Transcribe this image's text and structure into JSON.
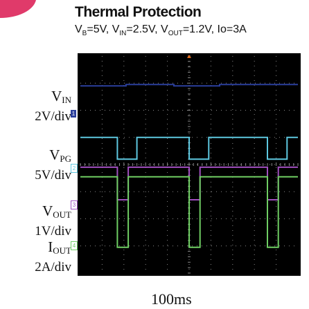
{
  "colors": {
    "vin": "#2b3f9c",
    "vpg": "#5ec8e0",
    "vout": "#a14fc0",
    "iout": "#6fce63",
    "screen_bg": "#000000",
    "grid": "#8a8a8a",
    "corner": "#e03a6a"
  },
  "title": "Thermal Protection",
  "conditions": {
    "vb_label": "V",
    "vb_sub": "B",
    "vb_value": "=5V, ",
    "vin_label": "V",
    "vin_sub": "IN",
    "vin_value": "=2.5V, ",
    "vout_label": "V",
    "vout_sub": "OUT",
    "vout_value": "=1.2V,  Io=3A"
  },
  "channels": [
    {
      "symbol": "V",
      "sub": "IN",
      "scale": "2V/div",
      "marker": "1"
    },
    {
      "symbol": "V",
      "sub": "PG",
      "scale": "5V/div",
      "marker": "2"
    },
    {
      "symbol": "V",
      "sub": "OUT",
      "scale": "1V/div",
      "marker": "3"
    },
    {
      "symbol": "I",
      "sub": "OUT",
      "scale": "2A/div",
      "marker": "4"
    }
  ],
  "timebase": "100ms",
  "chart_data": {
    "type": "line",
    "title": "Thermal Protection",
    "xlabel": "100ms",
    "x_divisions": 10,
    "y_divisions": 8,
    "xlim": [
      0,
      10
    ],
    "ylim": [
      0,
      8
    ],
    "grid": true,
    "series": [
      {
        "name": "VIN",
        "color_key": "vin",
        "x": [
          0,
          2.1,
          2.1,
          4.3,
          4.3,
          6.4,
          6.4,
          10
        ],
        "y": [
          6.9,
          6.9,
          6.95,
          6.95,
          6.9,
          6.9,
          6.95,
          6.95
        ]
      },
      {
        "name": "VPG",
        "color_key": "vpg",
        "x": [
          0,
          1.7,
          1.7,
          2.6,
          2.6,
          5.0,
          5.0,
          5.9,
          5.9,
          8.6,
          8.6,
          9.5,
          9.5,
          10
        ],
        "y": [
          5.0,
          5.0,
          4.2,
          4.2,
          5.0,
          5.0,
          4.2,
          4.2,
          5.0,
          5.0,
          4.2,
          4.2,
          5.0,
          5.0
        ]
      },
      {
        "name": "VOUT",
        "color_key": "vout",
        "x": [
          0,
          1.7,
          1.7,
          2.2,
          2.2,
          5.0,
          5.0,
          5.5,
          5.5,
          8.6,
          8.6,
          9.1,
          9.1,
          10
        ],
        "y": [
          3.9,
          3.9,
          2.7,
          2.7,
          3.9,
          3.9,
          2.7,
          2.7,
          3.9,
          3.9,
          2.7,
          2.7,
          3.9,
          3.9
        ]
      },
      {
        "name": "IOUT",
        "color_key": "iout",
        "x": [
          0,
          1.7,
          1.7,
          2.2,
          2.2,
          5.0,
          5.0,
          5.5,
          5.5,
          8.6,
          8.6,
          9.1,
          9.1,
          10
        ],
        "y": [
          3.55,
          3.55,
          0.95,
          0.95,
          3.55,
          3.55,
          0.95,
          0.95,
          3.55,
          3.55,
          0.95,
          0.95,
          3.55,
          3.55
        ]
      }
    ]
  }
}
